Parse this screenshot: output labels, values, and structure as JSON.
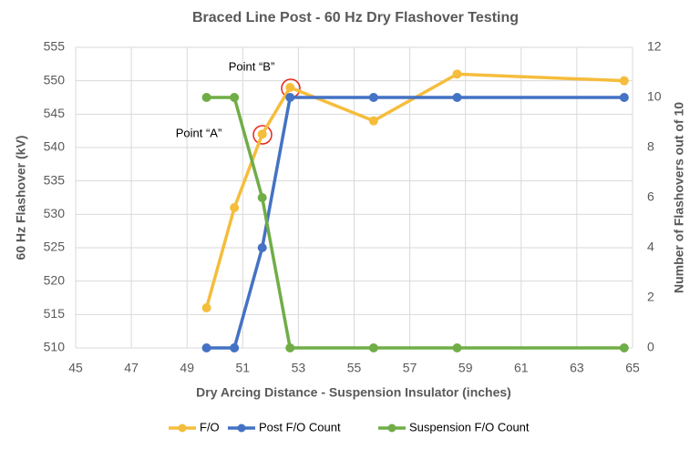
{
  "chart_data": {
    "type": "line",
    "title": "Braced Line Post - 60 Hz Dry Flashover Testing",
    "x_label": "Dry Arcing Distance - Suspension Insulator (inches)",
    "y_label": "60 Hz Flashover (kV)",
    "y2_label": "Number of Flashovers out of 10",
    "x": [
      49.7,
      50.7,
      51.7,
      52.7,
      55.7,
      58.7,
      64.7
    ],
    "series": [
      {
        "name": "F/O",
        "color": "#f5bd3c",
        "values": [
          516,
          531,
          542,
          549,
          544,
          551,
          550
        ]
      },
      {
        "name": "Post F/O Count",
        "color": "#4472c4",
        "axis": "y2",
        "values": [
          0,
          0,
          4,
          10,
          10,
          10,
          10
        ]
      },
      {
        "name": "Suspension F/O Count",
        "color": "#70ad47",
        "axis": "y2",
        "values": [
          10,
          10,
          6,
          0,
          0,
          0,
          0
        ]
      }
    ],
    "xlim": [
      45,
      65
    ],
    "xticks": [
      45,
      47,
      49,
      51,
      53,
      55,
      57,
      59,
      61,
      63,
      65
    ],
    "ylim": [
      510,
      555
    ],
    "yticks": [
      510,
      515,
      520,
      525,
      530,
      535,
      540,
      545,
      550,
      555
    ],
    "y2lim": [
      0,
      12
    ],
    "y2ticks": [
      0,
      2,
      4,
      6,
      8,
      10,
      12
    ],
    "grid": true,
    "legend": "bottom",
    "annotations": [
      {
        "text": "Point “A”"
      },
      {
        "text": "Point “B”"
      }
    ]
  }
}
